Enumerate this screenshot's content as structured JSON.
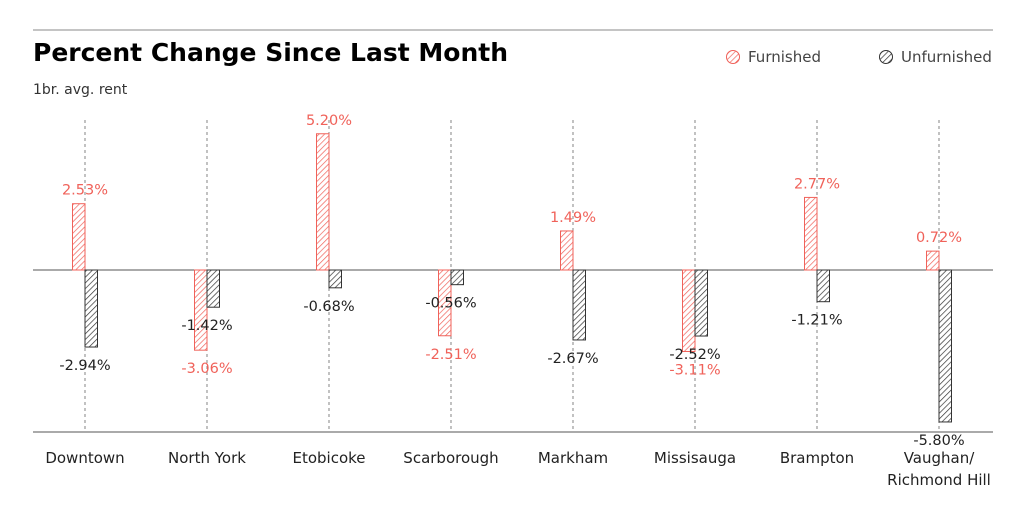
{
  "colors": {
    "furnished": "#f0625a",
    "unfurnished": "#333333",
    "title": "#f0625a",
    "axis": "#555555",
    "gridline": "#777777"
  },
  "chart_data": {
    "type": "bar",
    "title": "Percent Change Since Last Month",
    "subtitle": "1br. avg. rent",
    "xlabel": "",
    "ylabel": "",
    "ylim": [
      -6.2,
      5.6
    ],
    "grid": "vertical dashed lines at categories",
    "legend_position": "top-right",
    "categories": [
      [
        "Downtown"
      ],
      [
        "North York"
      ],
      [
        "Etobicoke"
      ],
      [
        "Scarborough"
      ],
      [
        "Markham"
      ],
      [
        "Missisauga"
      ],
      [
        "Brampton"
      ],
      [
        "Vaughan/",
        "Richmond Hill"
      ]
    ],
    "series": [
      {
        "name": "Furnished",
        "values": [
          2.53,
          -3.06,
          5.2,
          -2.51,
          1.49,
          -3.11,
          2.77,
          0.72
        ],
        "labels": [
          "2.53%",
          "-3.06%",
          "5.20%",
          "-2.51%",
          "1.49%",
          "-3.11%",
          "2.77%",
          "0.72%"
        ]
      },
      {
        "name": "Unfurnished",
        "values": [
          -2.94,
          -1.42,
          -0.68,
          -0.56,
          -2.67,
          -2.52,
          -1.21,
          -5.8
        ],
        "labels": [
          "-2.94%",
          "-1.42%",
          "-0.68%",
          "-0.56%",
          "-2.67%",
          "-2.52%",
          "-1.21%",
          "-5.80%"
        ]
      }
    ]
  }
}
